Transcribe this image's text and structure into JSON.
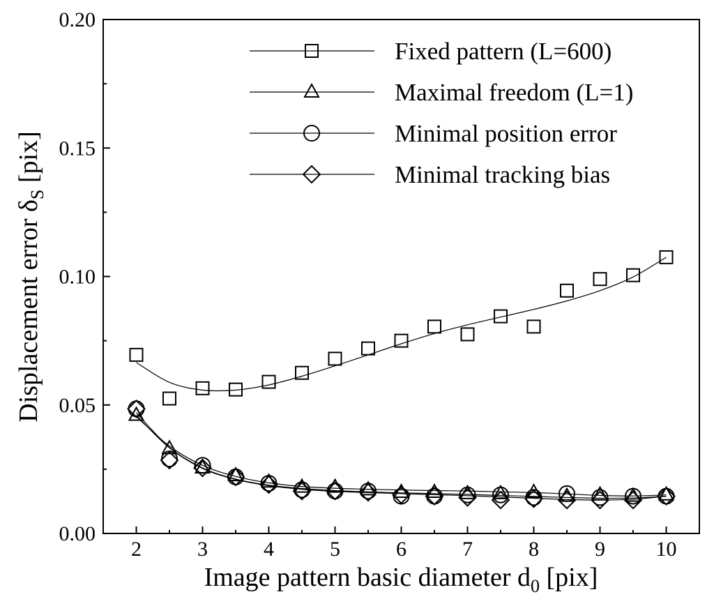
{
  "chart_data": {
    "type": "scatter",
    "xlabel": "Image pattern basic diameter d",
    "xlabel_sub": "0",
    "xlabel_suffix": " [pix]",
    "ylabel": "Displacement error δ",
    "ylabel_sub": "S",
    "ylabel_suffix": " [pix]",
    "xlim": [
      1.5,
      10.5
    ],
    "ylim": [
      0.0,
      0.2
    ],
    "xticks": [
      2,
      3,
      4,
      5,
      6,
      7,
      8,
      9,
      10
    ],
    "xtick_labels": [
      "2",
      "3",
      "4",
      "5",
      "6",
      "7",
      "8",
      "9",
      "10"
    ],
    "yticks": [
      0.0,
      0.05,
      0.1,
      0.15,
      0.2
    ],
    "ytick_labels": [
      "0.00",
      "0.05",
      "0.10",
      "0.15",
      "0.20"
    ],
    "grid": false,
    "legend_position": "top-right",
    "x": [
      2,
      2.5,
      3,
      3.5,
      4,
      4.5,
      5,
      5.5,
      6,
      6.5,
      7,
      7.5,
      8,
      8.5,
      9,
      9.5,
      10
    ],
    "series": [
      {
        "name": "Fixed pattern (L=600)",
        "marker": "square",
        "values": [
          0.0695,
          0.0525,
          0.0565,
          0.056,
          0.059,
          0.0625,
          0.068,
          0.072,
          0.075,
          0.0805,
          0.0775,
          0.0845,
          0.0805,
          0.0945,
          0.099,
          0.1005,
          0.1075
        ],
        "fit": [
          0.0665,
          0.0588,
          0.0558,
          0.0558,
          0.0578,
          0.0612,
          0.0652,
          0.0695,
          0.0738,
          0.0778,
          0.0812,
          0.0842,
          0.0872,
          0.0905,
          0.0945,
          0.0998,
          0.1075
        ]
      },
      {
        "name": "Maximal freedom (L=1)",
        "marker": "triangle",
        "values": [
          0.046,
          0.033,
          0.0255,
          0.0225,
          0.02,
          0.018,
          0.018,
          0.017,
          0.016,
          0.016,
          0.0155,
          0.0155,
          0.016,
          0.0145,
          0.015,
          0.0145,
          0.015
        ],
        "fit": [
          0.0455,
          0.034,
          0.0265,
          0.0222,
          0.0197,
          0.0183,
          0.0176,
          0.0172,
          0.0169,
          0.0167,
          0.0165,
          0.0162,
          0.0159,
          0.0154,
          0.0148,
          0.0146,
          0.015
        ]
      },
      {
        "name": "Minimal position error",
        "marker": "circle",
        "values": [
          0.0485,
          0.029,
          0.0265,
          0.022,
          0.0195,
          0.017,
          0.0165,
          0.0165,
          0.0145,
          0.0145,
          0.015,
          0.015,
          0.014,
          0.0155,
          0.014,
          0.0145,
          0.0145
        ],
        "fit": [
          0.047,
          0.0335,
          0.0255,
          0.0212,
          0.0188,
          0.0175,
          0.0167,
          0.0162,
          0.0158,
          0.0155,
          0.0152,
          0.0148,
          0.0144,
          0.014,
          0.0137,
          0.0138,
          0.0145
        ]
      },
      {
        "name": "Minimal tracking bias",
        "marker": "diamond",
        "values": [
          0.0485,
          0.0285,
          0.0255,
          0.022,
          0.019,
          0.0165,
          0.0165,
          0.016,
          0.015,
          0.0145,
          0.014,
          0.013,
          0.0135,
          0.013,
          0.013,
          0.013,
          0.0145
        ],
        "fit": [
          0.046,
          0.0333,
          0.0253,
          0.021,
          0.0186,
          0.0172,
          0.0164,
          0.0159,
          0.0155,
          0.0151,
          0.0147,
          0.0142,
          0.0137,
          0.0132,
          0.013,
          0.0133,
          0.0145
        ]
      }
    ]
  }
}
